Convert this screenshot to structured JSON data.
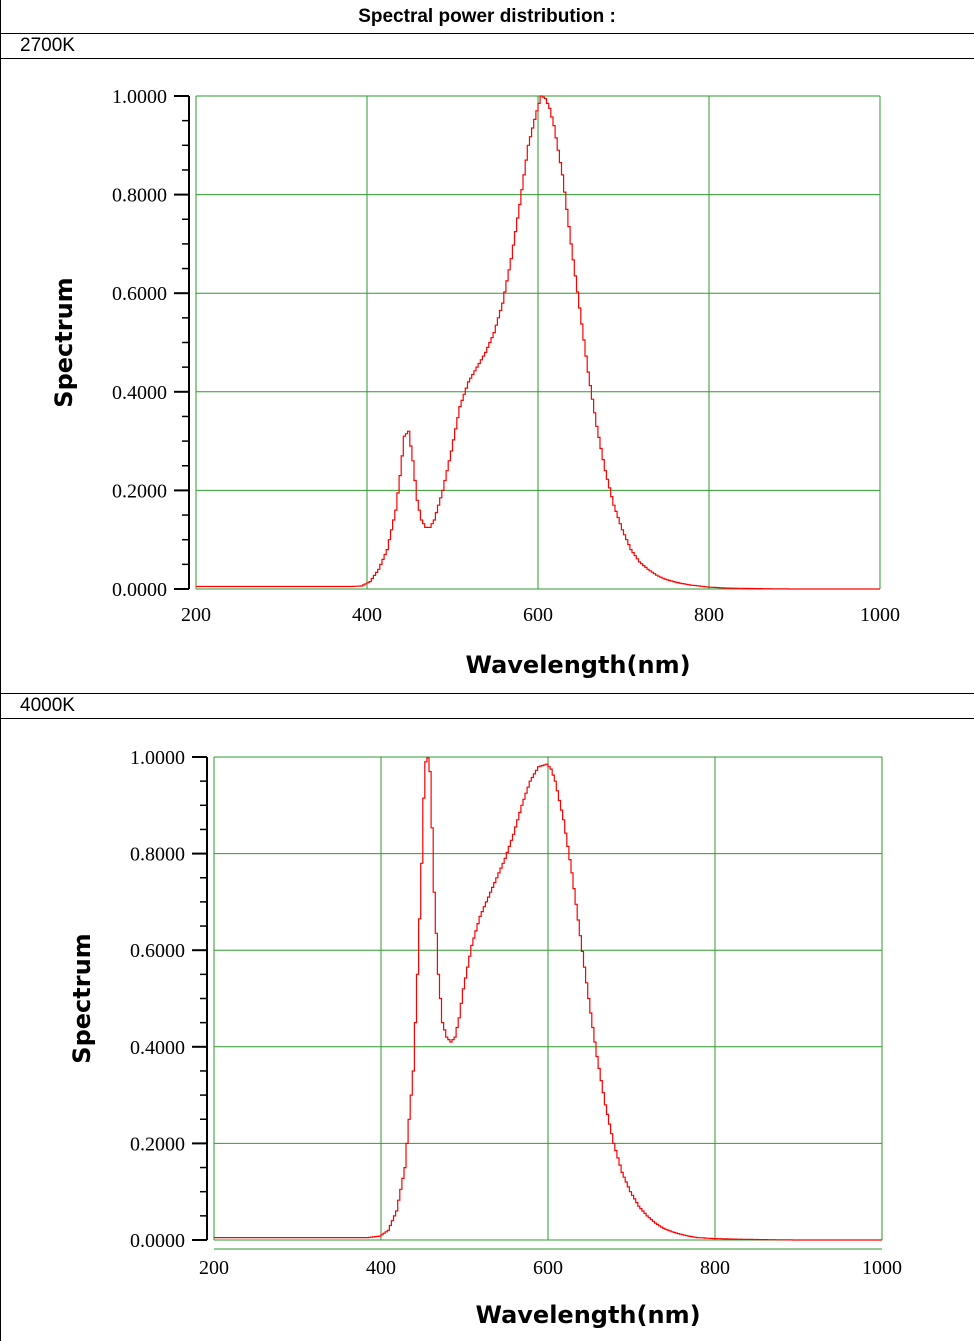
{
  "table": {
    "header": "Spectral power distribution :",
    "rows": [
      {
        "label": "2700K"
      },
      {
        "label": "4000K"
      }
    ]
  },
  "colors": {
    "grid": "#2e9b2e",
    "curve": "#ff0000",
    "axis": "#000000",
    "border": "#000000"
  },
  "chart_data": [
    {
      "type": "line",
      "title": "",
      "xlabel": "Wavelength(nm)",
      "ylabel": "Spectrum",
      "xlim": [
        200,
        1000
      ],
      "ylim": [
        0,
        1
      ],
      "xticks": [
        "200",
        "400",
        "600",
        "800",
        "1000"
      ],
      "yticks": [
        "0.0000",
        "0.2000",
        "0.4000",
        "0.6000",
        "0.8000",
        "1.0000"
      ],
      "grid": true,
      "series": [
        {
          "x": [
            200,
            380,
            395,
            405,
            415,
            425,
            435,
            440,
            445,
            450,
            455,
            460,
            465,
            470,
            475,
            480,
            490,
            500,
            510,
            520,
            530,
            540,
            550,
            560,
            570,
            580,
            590,
            600,
            605,
            610,
            615,
            620,
            630,
            640,
            650,
            660,
            670,
            680,
            690,
            700,
            710,
            720,
            730,
            740,
            750,
            760,
            770,
            780,
            790,
            800,
            820,
            850,
            900,
            1000
          ],
          "y": [
            0.005,
            0.005,
            0.006,
            0.015,
            0.04,
            0.08,
            0.16,
            0.23,
            0.31,
            0.32,
            0.26,
            0.18,
            0.14,
            0.125,
            0.125,
            0.14,
            0.2,
            0.28,
            0.37,
            0.42,
            0.45,
            0.48,
            0.52,
            0.58,
            0.67,
            0.78,
            0.9,
            0.97,
            1.0,
            0.995,
            0.975,
            0.94,
            0.84,
            0.7,
            0.57,
            0.44,
            0.33,
            0.24,
            0.17,
            0.12,
            0.08,
            0.055,
            0.04,
            0.028,
            0.02,
            0.015,
            0.011,
            0.008,
            0.006,
            0.004,
            0.002,
            0.001,
            0.0,
            0.0
          ]
        }
      ]
    },
    {
      "type": "line",
      "title": "",
      "xlabel": "Wavelength(nm)",
      "ylabel": "Spectrum",
      "xlim": [
        200,
        1000
      ],
      "ylim": [
        0,
        1
      ],
      "xticks": [
        "200",
        "400",
        "600",
        "800",
        "1000"
      ],
      "yticks": [
        "0.0000",
        "0.2000",
        "0.4000",
        "0.6000",
        "0.8000",
        "1.0000"
      ],
      "grid": true,
      "series": [
        {
          "x": [
            200,
            385,
            400,
            410,
            420,
            430,
            440,
            445,
            450,
            452,
            455,
            458,
            460,
            462,
            465,
            470,
            475,
            480,
            485,
            490,
            495,
            500,
            510,
            520,
            530,
            540,
            550,
            560,
            570,
            580,
            590,
            600,
            605,
            610,
            620,
            630,
            640,
            650,
            660,
            670,
            680,
            690,
            700,
            710,
            720,
            730,
            740,
            750,
            760,
            770,
            780,
            790,
            800,
            820,
            850,
            900,
            1000
          ],
          "y": [
            0.005,
            0.005,
            0.008,
            0.02,
            0.06,
            0.15,
            0.35,
            0.55,
            0.78,
            0.9,
            0.99,
            1.0,
            0.97,
            0.88,
            0.72,
            0.55,
            0.45,
            0.42,
            0.41,
            0.42,
            0.46,
            0.52,
            0.61,
            0.67,
            0.71,
            0.75,
            0.79,
            0.84,
            0.9,
            0.95,
            0.98,
            0.985,
            0.975,
            0.95,
            0.87,
            0.76,
            0.63,
            0.5,
            0.38,
            0.28,
            0.2,
            0.14,
            0.1,
            0.07,
            0.05,
            0.035,
            0.024,
            0.017,
            0.012,
            0.008,
            0.005,
            0.004,
            0.003,
            0.002,
            0.001,
            0.0,
            0.0
          ]
        }
      ]
    }
  ]
}
